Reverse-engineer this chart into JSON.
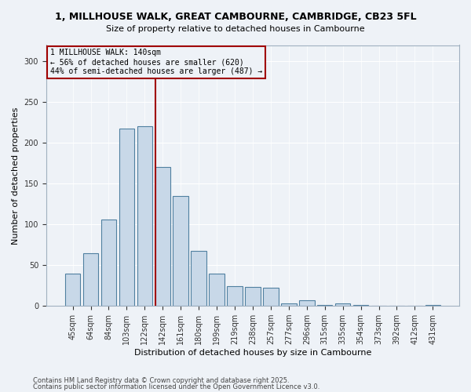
{
  "title": "1, MILLHOUSE WALK, GREAT CAMBOURNE, CAMBRIDGE, CB23 5FL",
  "subtitle": "Size of property relative to detached houses in Cambourne",
  "xlabel": "Distribution of detached houses by size in Cambourne",
  "ylabel": "Number of detached properties",
  "categories": [
    "45sqm",
    "64sqm",
    "84sqm",
    "103sqm",
    "122sqm",
    "142sqm",
    "161sqm",
    "180sqm",
    "199sqm",
    "219sqm",
    "238sqm",
    "257sqm",
    "277sqm",
    "296sqm",
    "315sqm",
    "335sqm",
    "354sqm",
    "373sqm",
    "392sqm",
    "412sqm",
    "431sqm"
  ],
  "values": [
    40,
    65,
    106,
    218,
    220,
    170,
    135,
    68,
    40,
    24,
    23,
    22,
    3,
    7,
    1,
    3,
    1,
    0,
    0,
    0,
    1
  ],
  "bar_color": "#c8d8e8",
  "bar_edge_color": "#5080a0",
  "property_label": "1 MILLHOUSE WALK: 140sqm",
  "annotation_line1": "← 56% of detached houses are smaller (620)",
  "annotation_line2": "44% of semi-detached houses are larger (487) →",
  "vline_color": "#a00000",
  "vline_x_index": 5,
  "box_color": "#a00000",
  "ylim": [
    0,
    320
  ],
  "yticks": [
    0,
    50,
    100,
    150,
    200,
    250,
    300
  ],
  "background_color": "#eef2f7",
  "footnote1": "Contains HM Land Registry data © Crown copyright and database right 2025.",
  "footnote2": "Contains public sector information licensed under the Open Government Licence v3.0."
}
